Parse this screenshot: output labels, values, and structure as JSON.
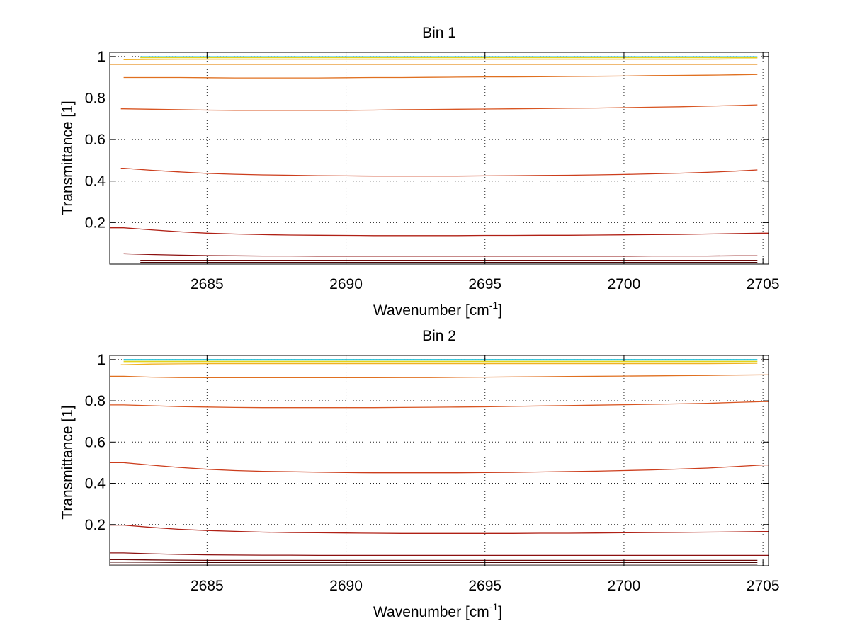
{
  "chart_data": [
    {
      "type": "line",
      "title": "Bin 1",
      "xlabel": {
        "main": "Wavenumber [cm",
        "sup": "-1",
        "end": "]"
      },
      "ylabel": "Transmittance [1]",
      "xlim": [
        2681.5,
        2705.2
      ],
      "ylim": [
        0.0,
        1.02
      ],
      "xticks": [
        "2685",
        "2690",
        "2695",
        "2700",
        "2705"
      ],
      "yticks": [
        "0.2",
        "0.4",
        "0.6",
        "0.8",
        "1"
      ],
      "grid": true,
      "x": [
        2682,
        2683,
        2684,
        2685,
        2686,
        2687,
        2688,
        2689,
        2690,
        2691,
        2692,
        2693,
        2694,
        2695,
        2696,
        2697,
        2698,
        2699,
        2700,
        2701,
        2702,
        2703,
        2704,
        2705
      ],
      "series": [
        {
          "color": "#1fbfd8",
          "x_range": [
            2682.6,
            2704.8
          ],
          "values": [
            0.999,
            0.999,
            0.999,
            0.999,
            0.999,
            0.999,
            0.999,
            0.999,
            0.999,
            0.999,
            0.999,
            0.999,
            0.999,
            0.999,
            0.999,
            0.999,
            0.999,
            0.999,
            0.999,
            0.999,
            0.999,
            0.999,
            0.999,
            0.999
          ]
        },
        {
          "color": "#8ccf3a",
          "x_range": [
            2682.6,
            2704.8
          ],
          "values": [
            0.997,
            0.997,
            0.997,
            0.997,
            0.997,
            0.997,
            0.997,
            0.997,
            0.997,
            0.997,
            0.997,
            0.997,
            0.997,
            0.997,
            0.997,
            0.997,
            0.997,
            0.997,
            0.997,
            0.997,
            0.997,
            0.997,
            0.997,
            0.997
          ]
        },
        {
          "color": "#e6d21a",
          "x_range": [
            2682.6,
            2704.8
          ],
          "values": [
            0.994,
            0.994,
            0.994,
            0.994,
            0.994,
            0.994,
            0.994,
            0.994,
            0.994,
            0.994,
            0.994,
            0.994,
            0.994,
            0.994,
            0.994,
            0.994,
            0.994,
            0.994,
            0.994,
            0.994,
            0.994,
            0.994,
            0.994,
            0.994
          ]
        },
        {
          "color": "#f0b020",
          "x_range": [
            2682.0,
            2704.8
          ],
          "values": [
            0.985,
            0.986,
            0.987,
            0.987,
            0.987,
            0.987,
            0.987,
            0.987,
            0.987,
            0.987,
            0.987,
            0.987,
            0.987,
            0.987,
            0.987,
            0.987,
            0.987,
            0.987,
            0.987,
            0.987,
            0.987,
            0.987,
            0.988,
            0.988
          ]
        },
        {
          "color": "#e89020",
          "x_range": [
            2681.5,
            2704.8
          ],
          "values": [
            0.962,
            0.962,
            0.962,
            0.962,
            0.962,
            0.962,
            0.962,
            0.962,
            0.962,
            0.962,
            0.962,
            0.962,
            0.962,
            0.962,
            0.962,
            0.962,
            0.962,
            0.962,
            0.962,
            0.962,
            0.962,
            0.962,
            0.962,
            0.962
          ]
        },
        {
          "color": "#e07020",
          "x_range": [
            2682.0,
            2704.8
          ],
          "values": [
            0.899,
            0.899,
            0.899,
            0.898,
            0.897,
            0.897,
            0.897,
            0.897,
            0.898,
            0.899,
            0.899,
            0.9,
            0.901,
            0.902,
            0.902,
            0.903,
            0.904,
            0.905,
            0.906,
            0.908,
            0.909,
            0.91,
            0.912,
            0.914
          ]
        },
        {
          "color": "#d85522",
          "x_range": [
            2681.9,
            2704.8
          ],
          "values": [
            0.748,
            0.746,
            0.744,
            0.742,
            0.741,
            0.741,
            0.741,
            0.741,
            0.741,
            0.742,
            0.744,
            0.745,
            0.746,
            0.747,
            0.748,
            0.749,
            0.751,
            0.752,
            0.754,
            0.756,
            0.758,
            0.761,
            0.764,
            0.768
          ]
        },
        {
          "color": "#cc3d1c",
          "x_range": [
            2681.9,
            2704.8
          ],
          "values": [
            0.462,
            0.452,
            0.444,
            0.437,
            0.433,
            0.43,
            0.428,
            0.426,
            0.425,
            0.424,
            0.424,
            0.424,
            0.424,
            0.425,
            0.426,
            0.427,
            0.428,
            0.43,
            0.432,
            0.435,
            0.438,
            0.442,
            0.448,
            0.455
          ]
        },
        {
          "color": "#b02015",
          "x_range": [
            2681.5,
            2705.2
          ],
          "values": [
            0.175,
            0.165,
            0.156,
            0.149,
            0.145,
            0.142,
            0.14,
            0.139,
            0.138,
            0.137,
            0.137,
            0.137,
            0.137,
            0.138,
            0.138,
            0.139,
            0.139,
            0.14,
            0.141,
            0.142,
            0.143,
            0.145,
            0.147,
            0.149
          ]
        },
        {
          "color": "#8c1010",
          "x_range": [
            2682.0,
            2704.8
          ],
          "values": [
            0.05,
            0.046,
            0.043,
            0.041,
            0.04,
            0.039,
            0.039,
            0.038,
            0.038,
            0.038,
            0.038,
            0.038,
            0.038,
            0.038,
            0.038,
            0.038,
            0.038,
            0.038,
            0.038,
            0.039,
            0.039,
            0.039,
            0.04,
            0.04
          ]
        },
        {
          "color": "#6e0a0a",
          "x_range": [
            2682.6,
            2704.8
          ],
          "values": [
            0.018,
            0.018,
            0.018,
            0.018,
            0.018,
            0.018,
            0.018,
            0.018,
            0.018,
            0.018,
            0.018,
            0.018,
            0.018,
            0.018,
            0.018,
            0.018,
            0.018,
            0.018,
            0.018,
            0.018,
            0.018,
            0.018,
            0.018,
            0.018
          ]
        },
        {
          "color": "#4a0505",
          "x_range": [
            2682.6,
            2704.8
          ],
          "values": [
            0.008,
            0.008,
            0.008,
            0.008,
            0.008,
            0.008,
            0.008,
            0.008,
            0.008,
            0.008,
            0.008,
            0.008,
            0.008,
            0.008,
            0.008,
            0.008,
            0.008,
            0.008,
            0.008,
            0.008,
            0.008,
            0.008,
            0.008,
            0.008
          ]
        }
      ]
    },
    {
      "type": "line",
      "title": "Bin 2",
      "xlabel": {
        "main": "Wavenumber [cm",
        "sup": "-1",
        "end": "]"
      },
      "ylabel": "Transmittance [1]",
      "xlim": [
        2681.5,
        2705.2
      ],
      "ylim": [
        0.0,
        1.02
      ],
      "xticks": [
        "2685",
        "2690",
        "2695",
        "2700",
        "2705"
      ],
      "yticks": [
        "0.2",
        "0.4",
        "0.6",
        "0.8",
        "1"
      ],
      "grid": true,
      "x": [
        2682,
        2683,
        2684,
        2685,
        2686,
        2687,
        2688,
        2689,
        2690,
        2691,
        2692,
        2693,
        2694,
        2695,
        2696,
        2697,
        2698,
        2699,
        2700,
        2701,
        2702,
        2703,
        2704,
        2705
      ],
      "series": [
        {
          "color": "#1fbfd8",
          "x_range": [
            2682.0,
            2704.8
          ],
          "values": [
            1.0,
            1.0,
            1.0,
            1.0,
            1.0,
            1.0,
            1.0,
            1.0,
            1.0,
            1.0,
            1.0,
            1.0,
            1.0,
            1.0,
            1.0,
            1.0,
            1.0,
            1.0,
            1.0,
            1.0,
            1.0,
            1.0,
            1.0,
            1.0
          ]
        },
        {
          "color": "#8ccf3a",
          "x_range": [
            2682.0,
            2704.8
          ],
          "values": [
            0.997,
            0.997,
            0.997,
            0.997,
            0.997,
            0.997,
            0.997,
            0.997,
            0.997,
            0.997,
            0.997,
            0.997,
            0.997,
            0.997,
            0.997,
            0.997,
            0.997,
            0.997,
            0.997,
            0.997,
            0.997,
            0.997,
            0.997,
            0.997
          ]
        },
        {
          "color": "#e6d21a",
          "x_range": [
            2682.0,
            2704.8
          ],
          "values": [
            0.99,
            0.99,
            0.99,
            0.99,
            0.99,
            0.99,
            0.99,
            0.99,
            0.99,
            0.99,
            0.99,
            0.99,
            0.99,
            0.99,
            0.99,
            0.99,
            0.99,
            0.99,
            0.99,
            0.99,
            0.99,
            0.99,
            0.99,
            0.99
          ]
        },
        {
          "color": "#f0b020",
          "x_range": [
            2681.9,
            2704.8
          ],
          "values": [
            0.975,
            0.978,
            0.979,
            0.98,
            0.98,
            0.98,
            0.98,
            0.98,
            0.98,
            0.98,
            0.98,
            0.98,
            0.98,
            0.98,
            0.98,
            0.98,
            0.98,
            0.98,
            0.98,
            0.98,
            0.98,
            0.98,
            0.981,
            0.982
          ]
        },
        {
          "color": "#e07020",
          "x_range": [
            2681.5,
            2705.2
          ],
          "values": [
            0.919,
            0.915,
            0.913,
            0.912,
            0.912,
            0.912,
            0.912,
            0.912,
            0.912,
            0.912,
            0.913,
            0.913,
            0.914,
            0.915,
            0.916,
            0.917,
            0.918,
            0.919,
            0.92,
            0.921,
            0.922,
            0.923,
            0.925,
            0.926
          ]
        },
        {
          "color": "#d85522",
          "x_range": [
            2681.5,
            2705.2
          ],
          "values": [
            0.78,
            0.776,
            0.772,
            0.77,
            0.768,
            0.767,
            0.767,
            0.767,
            0.767,
            0.767,
            0.768,
            0.769,
            0.77,
            0.771,
            0.773,
            0.775,
            0.777,
            0.779,
            0.781,
            0.783,
            0.785,
            0.788,
            0.792,
            0.796
          ]
        },
        {
          "color": "#cc3d1c",
          "x_range": [
            2681.5,
            2705.2
          ],
          "values": [
            0.5,
            0.488,
            0.477,
            0.468,
            0.462,
            0.458,
            0.456,
            0.454,
            0.452,
            0.451,
            0.451,
            0.451,
            0.451,
            0.452,
            0.453,
            0.455,
            0.457,
            0.459,
            0.462,
            0.465,
            0.469,
            0.474,
            0.481,
            0.489
          ]
        },
        {
          "color": "#b02015",
          "x_range": [
            2681.5,
            2705.2
          ],
          "values": [
            0.197,
            0.186,
            0.177,
            0.171,
            0.167,
            0.163,
            0.161,
            0.16,
            0.159,
            0.158,
            0.157,
            0.157,
            0.157,
            0.157,
            0.157,
            0.158,
            0.158,
            0.159,
            0.16,
            0.161,
            0.162,
            0.163,
            0.164,
            0.166
          ]
        },
        {
          "color": "#8c1010",
          "x_range": [
            2681.5,
            2705.2
          ],
          "values": [
            0.062,
            0.058,
            0.055,
            0.053,
            0.052,
            0.051,
            0.051,
            0.05,
            0.05,
            0.05,
            0.05,
            0.05,
            0.05,
            0.05,
            0.05,
            0.05,
            0.05,
            0.05,
            0.05,
            0.05,
            0.05,
            0.05,
            0.05,
            0.05
          ]
        },
        {
          "color": "#6e0a0a",
          "x_range": [
            2681.5,
            2704.8
          ],
          "values": [
            0.03,
            0.028,
            0.027,
            0.026,
            0.026,
            0.026,
            0.026,
            0.026,
            0.026,
            0.026,
            0.026,
            0.026,
            0.026,
            0.026,
            0.026,
            0.026,
            0.026,
            0.026,
            0.026,
            0.026,
            0.026,
            0.026,
            0.026,
            0.026
          ]
        },
        {
          "color": "#4a0505",
          "x_range": [
            2681.5,
            2704.8
          ],
          "values": [
            0.018,
            0.017,
            0.016,
            0.016,
            0.016,
            0.016,
            0.016,
            0.016,
            0.016,
            0.016,
            0.016,
            0.016,
            0.016,
            0.016,
            0.016,
            0.016,
            0.016,
            0.016,
            0.016,
            0.016,
            0.016,
            0.016,
            0.016,
            0.016
          ]
        },
        {
          "color": "#2c0202",
          "x_range": [
            2681.5,
            2704.8
          ],
          "values": [
            0.008,
            0.008,
            0.008,
            0.008,
            0.008,
            0.008,
            0.008,
            0.008,
            0.008,
            0.008,
            0.008,
            0.008,
            0.008,
            0.008,
            0.008,
            0.008,
            0.008,
            0.008,
            0.008,
            0.008,
            0.008,
            0.008,
            0.008,
            0.008
          ]
        }
      ]
    }
  ]
}
